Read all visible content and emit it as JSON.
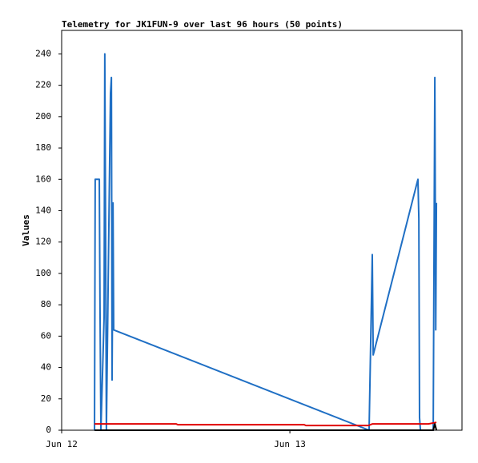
{
  "chart_data": {
    "type": "line",
    "title": "Telemetry for JK1FUN-9 over last 96 hours (50 points)",
    "y_label": "Values",
    "xlim": [
      0,
      1.754
    ],
    "ylim": [
      0,
      255
    ],
    "xticks": [
      {
        "value": 0,
        "label": "Jun 12"
      },
      {
        "value": 1,
        "label": "Jun 13"
      }
    ],
    "yticks": [
      0,
      20,
      40,
      60,
      80,
      100,
      120,
      140,
      160,
      180,
      200,
      220,
      240
    ],
    "grid": false,
    "series": [
      {
        "color": "#1f6fc4",
        "x": [
          0.144,
          0.147,
          0.165,
          0.168,
          0.172,
          0.186,
          0.189,
          0.193,
          0.196,
          0.214,
          0.218,
          0.221,
          0.225,
          0.228,
          1.347,
          1.361,
          1.365,
          1.561,
          1.565,
          1.568,
          1.572,
          1.628,
          1.635,
          1.639,
          1.642
        ],
        "values": [
          0,
          160,
          160,
          80,
          0,
          72,
          240,
          112,
          0,
          215,
          225,
          32,
          145,
          64,
          0,
          112,
          48,
          160,
          135,
          8,
          0,
          0,
          225,
          64,
          145
        ]
      },
      {
        "color": "#e00000",
        "x": [
          0.144,
          0.502,
          0.509,
          1.063,
          1.07,
          1.344,
          1.361,
          1.607,
          1.642
        ],
        "values": [
          4,
          4,
          3.5,
          3.5,
          3,
          3,
          4,
          4,
          5
        ]
      },
      {
        "color": "#000000",
        "x": [
          0.144,
          1.628,
          1.635,
          1.642
        ],
        "values": [
          0,
          0,
          4,
          0
        ]
      }
    ]
  }
}
